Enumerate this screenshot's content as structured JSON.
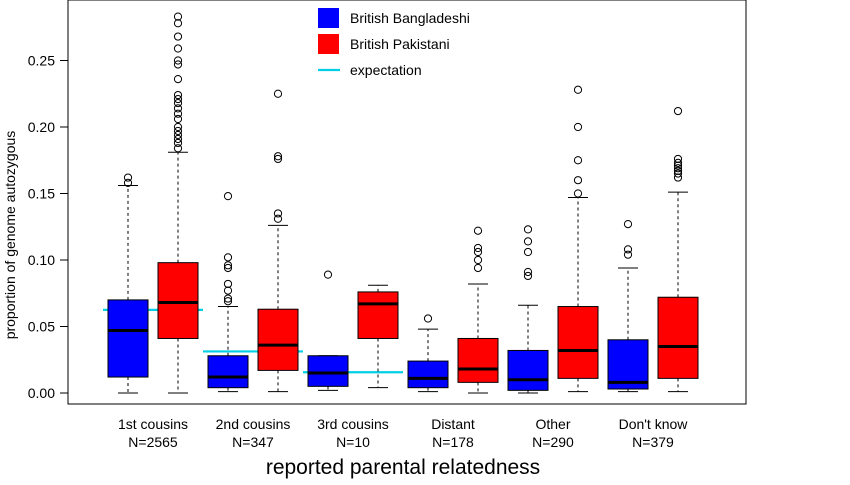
{
  "chart_data": {
    "type": "boxplot",
    "title": "",
    "xlabel": "reported parental relatedness",
    "ylabel": "proportion of genome autozygous",
    "ylim": [
      0,
      0.28
    ],
    "yticks": [
      "0.00",
      "0.05",
      "0.10",
      "0.15",
      "0.20",
      "0.25"
    ],
    "legend_position": "top",
    "legend": [
      {
        "label": "British Bangladeshi",
        "kind": "box",
        "color": "#0000ff"
      },
      {
        "label": "British Pakistani",
        "kind": "box",
        "color": "#ff0000"
      },
      {
        "label": "expectation",
        "kind": "line",
        "color": "#00cfe6"
      }
    ],
    "categories": [
      {
        "name": "1st cousins",
        "n_label": "N=2565"
      },
      {
        "name": "2nd cousins",
        "n_label": "N=347"
      },
      {
        "name": "3rd cousins",
        "n_label": "N=10"
      },
      {
        "name": "Distant",
        "n_label": "N=178"
      },
      {
        "name": "Other",
        "n_label": "N=290"
      },
      {
        "name": "Don't know",
        "n_label": "N=379"
      }
    ],
    "series": [
      {
        "name": "British Bangladeshi",
        "color": "#0000ff",
        "boxes": [
          {
            "whisker_low": 0.0,
            "q1": 0.012,
            "median": 0.047,
            "q3": 0.07,
            "whisker_high": 0.156,
            "outliers": [
              0.158,
              0.162
            ]
          },
          {
            "whisker_low": 0.001,
            "q1": 0.004,
            "median": 0.012,
            "q3": 0.028,
            "whisker_high": 0.065,
            "outliers": [
              0.069,
              0.071,
              0.077,
              0.082,
              0.094,
              0.096,
              0.102,
              0.148
            ]
          },
          {
            "whisker_low": 0.002,
            "q1": 0.005,
            "median": 0.015,
            "q3": 0.028,
            "whisker_high": 0.028,
            "outliers": [
              0.089
            ]
          },
          {
            "whisker_low": 0.001,
            "q1": 0.004,
            "median": 0.011,
            "q3": 0.024,
            "whisker_high": 0.048,
            "outliers": [
              0.056
            ]
          },
          {
            "whisker_low": 0.0,
            "q1": 0.002,
            "median": 0.01,
            "q3": 0.032,
            "whisker_high": 0.066,
            "outliers": [
              0.088,
              0.091,
              0.106,
              0.114,
              0.123
            ]
          },
          {
            "whisker_low": 0.001,
            "q1": 0.003,
            "median": 0.008,
            "q3": 0.04,
            "whisker_high": 0.094,
            "outliers": [
              0.104,
              0.108,
              0.127
            ]
          }
        ]
      },
      {
        "name": "British Pakistani",
        "color": "#ff0000",
        "boxes": [
          {
            "whisker_low": 0.0,
            "q1": 0.041,
            "median": 0.068,
            "q3": 0.098,
            "whisker_high": 0.181,
            "outliers": [
              0.184,
              0.188,
              0.191,
              0.194,
              0.197,
              0.2,
              0.206,
              0.21,
              0.214,
              0.218,
              0.221,
              0.224,
              0.236,
              0.247,
              0.25,
              0.259,
              0.268,
              0.278,
              0.283
            ]
          },
          {
            "whisker_low": 0.001,
            "q1": 0.017,
            "median": 0.036,
            "q3": 0.063,
            "whisker_high": 0.126,
            "outliers": [
              0.131,
              0.135,
              0.176,
              0.178,
              0.225
            ]
          },
          {
            "whisker_low": 0.004,
            "q1": 0.041,
            "median": 0.067,
            "q3": 0.076,
            "whisker_high": 0.081,
            "outliers": []
          },
          {
            "whisker_low": 0.0,
            "q1": 0.008,
            "median": 0.018,
            "q3": 0.041,
            "whisker_high": 0.082,
            "outliers": [
              0.094,
              0.1,
              0.106,
              0.109,
              0.122
            ]
          },
          {
            "whisker_low": 0.001,
            "q1": 0.011,
            "median": 0.032,
            "q3": 0.065,
            "whisker_high": 0.147,
            "outliers": [
              0.15,
              0.16,
              0.175,
              0.2,
              0.228
            ]
          },
          {
            "whisker_low": 0.001,
            "q1": 0.011,
            "median": 0.035,
            "q3": 0.072,
            "whisker_high": 0.151,
            "outliers": [
              0.162,
              0.165,
              0.167,
              0.169,
              0.171,
              0.173,
              0.176,
              0.212
            ]
          }
        ]
      }
    ],
    "expectation": [
      {
        "category": "1st cousins",
        "value": 0.0625
      },
      {
        "category": "2nd cousins",
        "value": 0.03125
      },
      {
        "category": "3rd cousins",
        "value": 0.015625
      }
    ]
  }
}
